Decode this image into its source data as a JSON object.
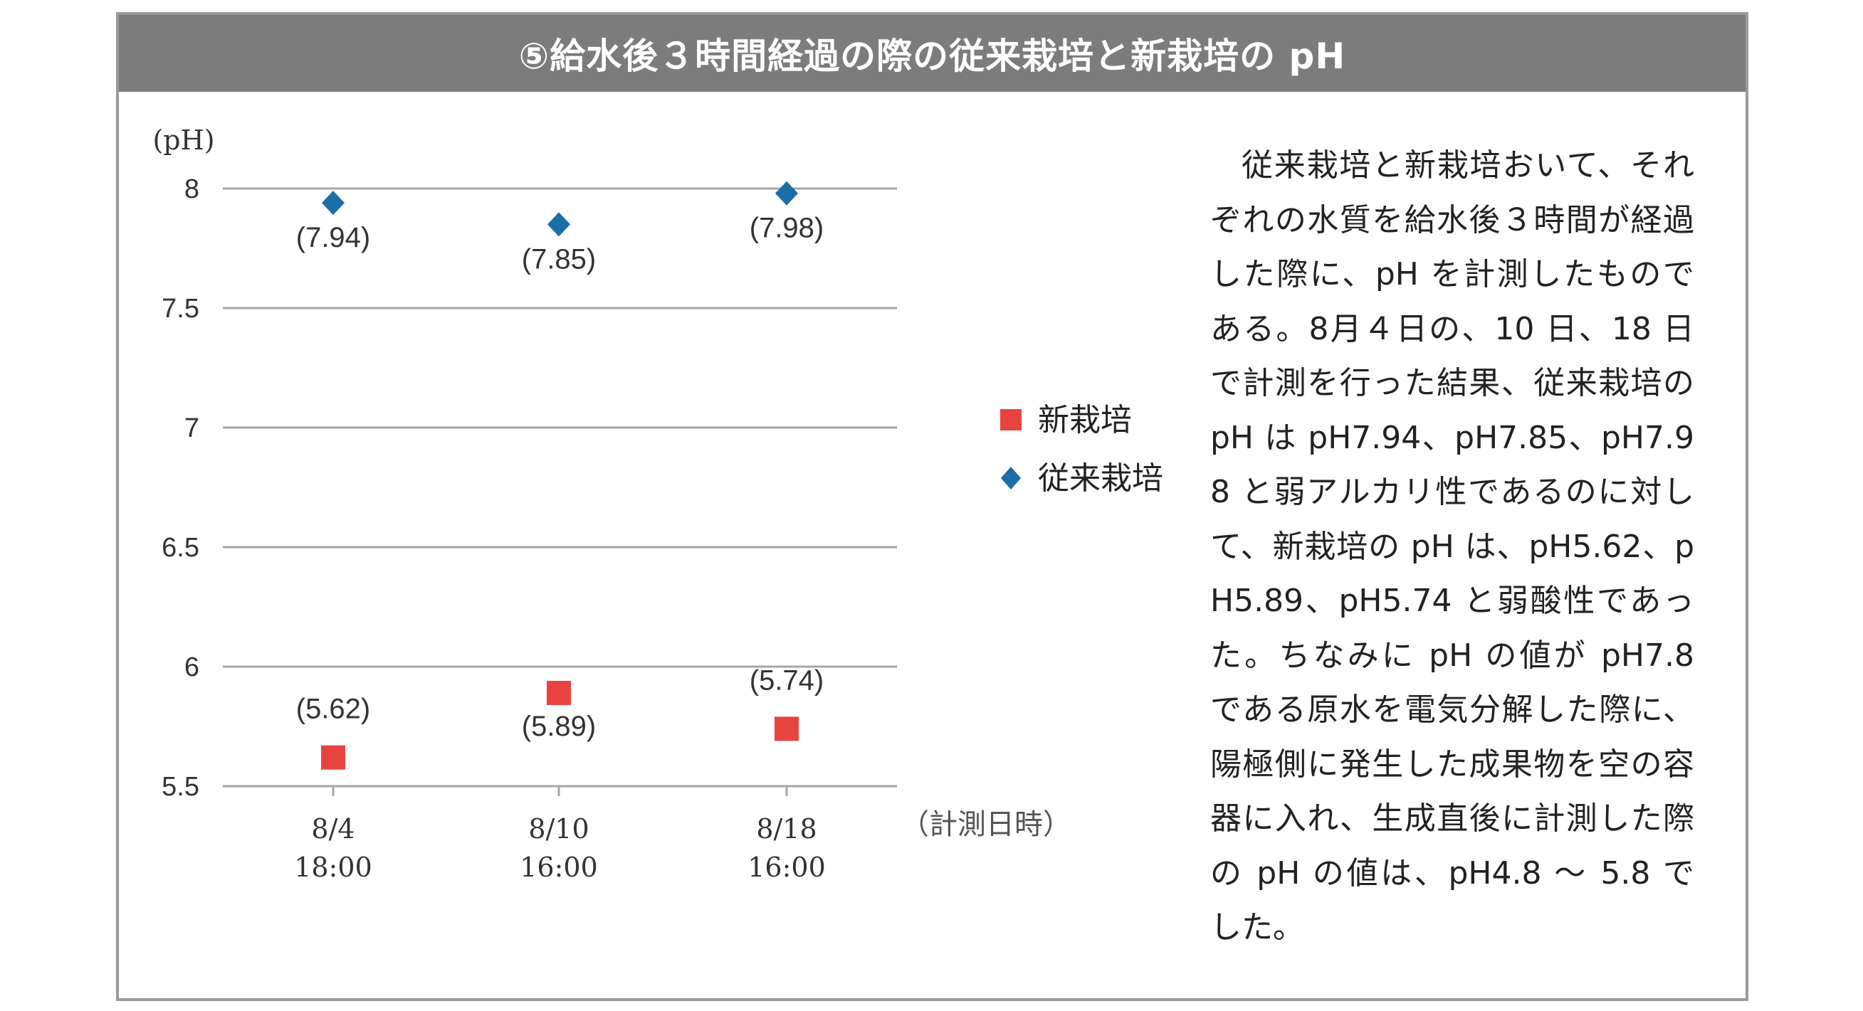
{
  "title": "⑤給水後３時間経過の際の従来栽培と新栽培の pH",
  "description": "従来栽培と新栽培おいて、それぞれの水質を給水後３時間が経過した際に、pH を計測したものである。8月４日の、10 日、18 日で計測を行った結果、従来栽培の pH は pH7.94、pH7.85、pH7.98 と弱アルカリ性であるのに対して、新栽培の pH は、pH5.62、pH5.89、pH5.74 と弱酸性であった。ちなみに pH の値が pH7.8 である原水を電気分解した際に、陽極側に発生した成果物を空の容器に入れ、生成直後に計測した際の pH の値は、pH4.8 ～ 5.8 でした。",
  "chart_data": {
    "type": "scatter",
    "y_unit_label": "(pH)",
    "x_unit_label": "（計測日時）",
    "ylim": [
      5.5,
      8
    ],
    "y_ticks": [
      "8",
      "7.5",
      "7",
      "6.5",
      "6",
      "5.5"
    ],
    "y_tick_values": [
      8,
      7.5,
      7,
      6.5,
      6,
      5.5
    ],
    "categories": [
      {
        "line1": "8/4",
        "line2": "18:00"
      },
      {
        "line1": "8/10",
        "line2": "16:00"
      },
      {
        "line1": "8/18",
        "line2": "16:00"
      }
    ],
    "grid": true,
    "legend_position": "right",
    "series": [
      {
        "name": "新栽培",
        "marker": "square",
        "color": "#e8443f",
        "values": [
          5.62,
          5.89,
          5.74
        ],
        "labels": [
          "(5.62)",
          "(5.89)",
          "(5.74)"
        ]
      },
      {
        "name": "従来栽培",
        "marker": "diamond",
        "color": "#1b6ea8",
        "values": [
          7.94,
          7.85,
          7.98
        ],
        "labels": [
          "(7.94)",
          "(7.85)",
          "(7.98)"
        ]
      }
    ]
  }
}
